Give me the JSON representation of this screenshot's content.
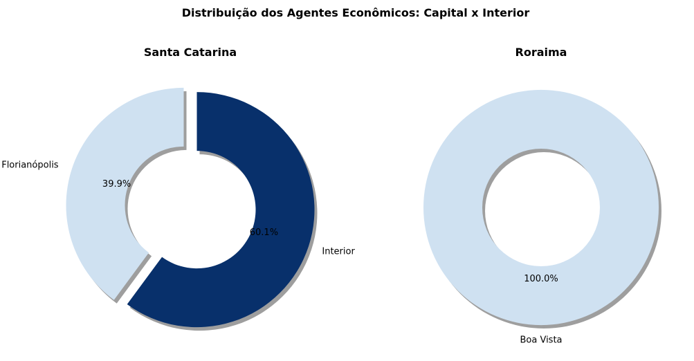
{
  "figure": {
    "title": "Distribuição dos Agentes Econômicos: Capital x Interior"
  },
  "chart_data": [
    {
      "type": "pie",
      "style": "donut",
      "title": "Santa Catarina",
      "categories": [
        "Florianópolis",
        "Interior"
      ],
      "values": [
        39.9,
        60.1
      ],
      "percent_labels": [
        "39.9%",
        "60.1%"
      ],
      "colors": [
        "#cfe1f1",
        "#08306b"
      ],
      "exploded": true,
      "shadow": true
    },
    {
      "type": "pie",
      "style": "donut",
      "title": "Roraima",
      "categories": [
        "Boa Vista"
      ],
      "values": [
        100.0
      ],
      "percent_labels": [
        "100.0%"
      ],
      "colors": [
        "#cfe1f1"
      ],
      "exploded": false,
      "shadow": true
    }
  ]
}
